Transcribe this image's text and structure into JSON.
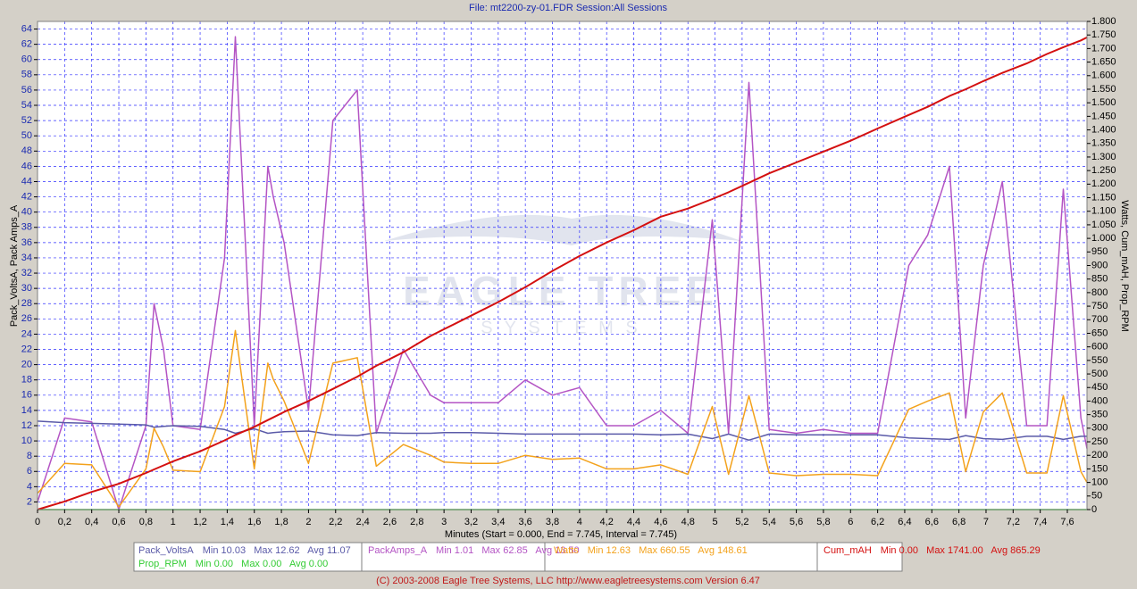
{
  "chart_data": {
    "type": "line",
    "title": "File: mt2200-zy-01.FDR   Session:All Sessions",
    "x_label": "Minutes (Start = 0.000, End = 7.745, Interval = 7.745)",
    "y_label": "Pack_VoltsA, Pack Amps_A",
    "y2_label": "Watts, Cum_mAH, Prop_RPM",
    "footer": "(C) 2003-2008 Eagle Tree Systems, LLC      http://www.eagletreesystems.com      Version 6.47",
    "watermark": [
      "EAGLE TREE",
      "S Y S T E M S"
    ],
    "grid": true,
    "xlim": [
      0,
      7.745
    ],
    "ylim": [
      1,
      65
    ],
    "y2lim": [
      0,
      1800
    ],
    "xticks": [
      0,
      {
        "value": 0.2,
        "label": "0,2"
      },
      {
        "value": 0.4,
        "label": "0,4"
      },
      {
        "value": 0.6,
        "label": "0,6"
      },
      {
        "value": 0.8,
        "label": "0,8"
      },
      1,
      {
        "value": 1.2,
        "label": "1,2"
      },
      {
        "value": 1.4,
        "label": "1,4"
      },
      {
        "value": 1.6,
        "label": "1,6"
      },
      {
        "value": 1.8,
        "label": "1,8"
      },
      2,
      {
        "value": 2.2,
        "label": "2,2"
      },
      {
        "value": 2.4,
        "label": "2,4"
      },
      {
        "value": 2.6,
        "label": "2,6"
      },
      {
        "value": 2.8,
        "label": "2,8"
      },
      3,
      {
        "value": 3.2,
        "label": "3,2"
      },
      {
        "value": 3.4,
        "label": "3,4"
      },
      {
        "value": 3.6,
        "label": "3,6"
      },
      {
        "value": 3.8,
        "label": "3,8"
      },
      4,
      {
        "value": 4.2,
        "label": "4,2"
      },
      {
        "value": 4.4,
        "label": "4,4"
      },
      {
        "value": 4.6,
        "label": "4,6"
      },
      {
        "value": 4.8,
        "label": "4,8"
      },
      5,
      {
        "value": 5.2,
        "label": "5,2"
      },
      {
        "value": 5.4,
        "label": "5,4"
      },
      {
        "value": 5.6,
        "label": "5,6"
      },
      {
        "value": 5.8,
        "label": "5,8"
      },
      6,
      {
        "value": 6.2,
        "label": "6,2"
      },
      {
        "value": 6.4,
        "label": "6,4"
      },
      {
        "value": 6.6,
        "label": "6,6"
      },
      {
        "value": 6.8,
        "label": "6,8"
      },
      7,
      {
        "value": 7.2,
        "label": "7,2"
      },
      {
        "value": 7.4,
        "label": "7,4"
      },
      {
        "value": 7.6,
        "label": "7,6"
      }
    ],
    "yticks": [
      2,
      4,
      6,
      8,
      10,
      12,
      14,
      16,
      18,
      20,
      22,
      24,
      26,
      28,
      30,
      32,
      34,
      36,
      38,
      40,
      42,
      44,
      46,
      48,
      50,
      52,
      54,
      56,
      58,
      60,
      62,
      64
    ],
    "y2ticks": [
      0,
      50,
      100,
      150,
      200,
      250,
      300,
      350,
      400,
      450,
      500,
      550,
      600,
      650,
      700,
      750,
      800,
      850,
      900,
      950,
      {
        "value": 1000,
        "label": "1.000"
      },
      {
        "value": 1050,
        "label": "1.050"
      },
      {
        "value": 1100,
        "label": "1.100"
      },
      {
        "value": 1150,
        "label": "1.150"
      },
      {
        "value": 1200,
        "label": "1.200"
      },
      {
        "value": 1250,
        "label": "1.250"
      },
      {
        "value": 1300,
        "label": "1.300"
      },
      {
        "value": 1350,
        "label": "1.350"
      },
      {
        "value": 1400,
        "label": "1.400"
      },
      {
        "value": 1450,
        "label": "1.450"
      },
      {
        "value": 1500,
        "label": "1.500"
      },
      {
        "value": 1550,
        "label": "1.550"
      },
      {
        "value": 1600,
        "label": "1.600"
      },
      {
        "value": 1650,
        "label": "1.650"
      },
      {
        "value": 1700,
        "label": "1.700"
      },
      {
        "value": 1750,
        "label": "1.750"
      },
      {
        "value": 1800,
        "label": "1.800"
      }
    ],
    "x": [
      0,
      0.2,
      0.4,
      0.6,
      0.8,
      0.86,
      0.93,
      1.0,
      1.2,
      1.38,
      1.46,
      1.6,
      1.7,
      1.74,
      1.82,
      2.0,
      2.18,
      2.36,
      2.5,
      2.7,
      2.9,
      3.0,
      3.2,
      3.4,
      3.6,
      3.8,
      4.0,
      4.2,
      4.4,
      4.6,
      4.8,
      4.98,
      5.1,
      5.25,
      5.4,
      5.6,
      5.8,
      6.0,
      6.2,
      6.43,
      6.57,
      6.73,
      6.85,
      6.98,
      7.12,
      7.3,
      7.45,
      7.57,
      7.7,
      7.745
    ],
    "series": [
      {
        "name": "Pack_VoltsA",
        "color": "#5a5aa8",
        "axis": "y",
        "summary": "Min 10.03   Max 12.62   Avg 11.07",
        "values": [
          12.6,
          12.4,
          12.3,
          12.2,
          12.1,
          11.8,
          11.9,
          12.0,
          11.9,
          11.5,
          11.0,
          11.6,
          11.0,
          11.1,
          11.2,
          11.3,
          10.8,
          10.7,
          11.1,
          11.0,
          11.0,
          11.1,
          11.1,
          11.0,
          10.9,
          10.9,
          10.9,
          10.9,
          10.9,
          10.8,
          10.9,
          10.3,
          10.9,
          10.1,
          10.9,
          10.8,
          10.8,
          10.8,
          10.8,
          10.4,
          10.3,
          10.2,
          10.7,
          10.3,
          10.2,
          10.6,
          10.6,
          10.2,
          10.6,
          10.6
        ]
      },
      {
        "name": "PackAmps_A",
        "color": "#b455c4",
        "axis": "y",
        "summary": "Min 1.01   Max 62.85   Avg 13.50",
        "values": [
          2,
          13,
          12.5,
          1,
          12,
          28,
          22,
          12,
          11.5,
          34,
          63,
          12,
          46,
          42,
          36,
          14,
          52,
          56,
          11,
          22,
          16,
          15,
          15,
          15,
          18,
          16,
          17,
          12,
          12,
          14,
          11,
          39,
          11,
          57,
          11.5,
          11,
          11.5,
          11,
          11,
          33,
          37,
          46,
          13,
          33,
          44,
          12,
          12,
          43,
          13,
          9
        ]
      },
      {
        "name": "Watts",
        "color": "#f3a21c",
        "axis": "y2",
        "summary": "Min 12.63   Max 660.55   Avg 148.61",
        "values": [
          60,
          170,
          165,
          10,
          150,
          300,
          230,
          145,
          140,
          380,
          660,
          150,
          540,
          480,
          400,
          170,
          540,
          560,
          160,
          240,
          200,
          175,
          170,
          170,
          200,
          185,
          190,
          150,
          150,
          165,
          130,
          380,
          130,
          420,
          135,
          125,
          130,
          130,
          125,
          370,
          400,
          430,
          140,
          360,
          430,
          135,
          135,
          420,
          140,
          100
        ]
      },
      {
        "name": "Cum_mAH",
        "color": "#d41010",
        "axis": "y2",
        "summary": "Min 0.00   Max 1741.00   Avg 865.29",
        "values": [
          0,
          30,
          65,
          95,
          135,
          148,
          163,
          178,
          215,
          255,
          275,
          305,
          330,
          340,
          360,
          400,
          445,
          490,
          530,
          580,
          640,
          665,
          715,
          765,
          820,
          880,
          935,
          985,
          1030,
          1080,
          1110,
          1145,
          1170,
          1205,
          1240,
          1280,
          1320,
          1360,
          1405,
          1455,
          1485,
          1525,
          1550,
          1580,
          1610,
          1645,
          1680,
          1705,
          1730,
          1741
        ]
      },
      {
        "name": "Prop_RPM",
        "color": "#33cc33",
        "axis": "y2",
        "summary": "Min 0.00   Max 0.00   Avg 0.00",
        "values": [
          0,
          0,
          0,
          0,
          0,
          0,
          0,
          0,
          0,
          0,
          0,
          0,
          0,
          0,
          0,
          0,
          0,
          0,
          0,
          0,
          0,
          0,
          0,
          0,
          0,
          0,
          0,
          0,
          0,
          0,
          0,
          0,
          0,
          0,
          0,
          0,
          0,
          0,
          0,
          0,
          0,
          0,
          0,
          0,
          0,
          0,
          0,
          0,
          0,
          0
        ]
      }
    ]
  }
}
